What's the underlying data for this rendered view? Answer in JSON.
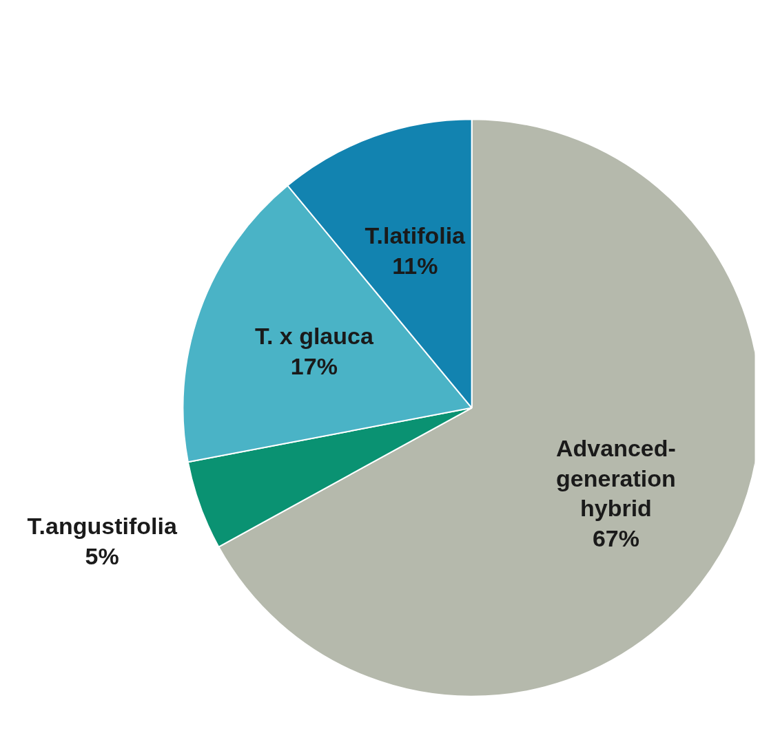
{
  "chart_data": {
    "type": "pie",
    "categories": [
      "Advanced-\ngeneration\nhybrid",
      "T.angustifolia",
      "T. x glauca",
      "T.latifolia"
    ],
    "values": [
      67,
      5,
      17,
      11
    ],
    "value_labels": [
      "67%",
      "5%",
      "17%",
      "11%"
    ],
    "colors": [
      "#b5b9ac",
      "#0a9272",
      "#4ab3c6",
      "#1283b0"
    ]
  }
}
